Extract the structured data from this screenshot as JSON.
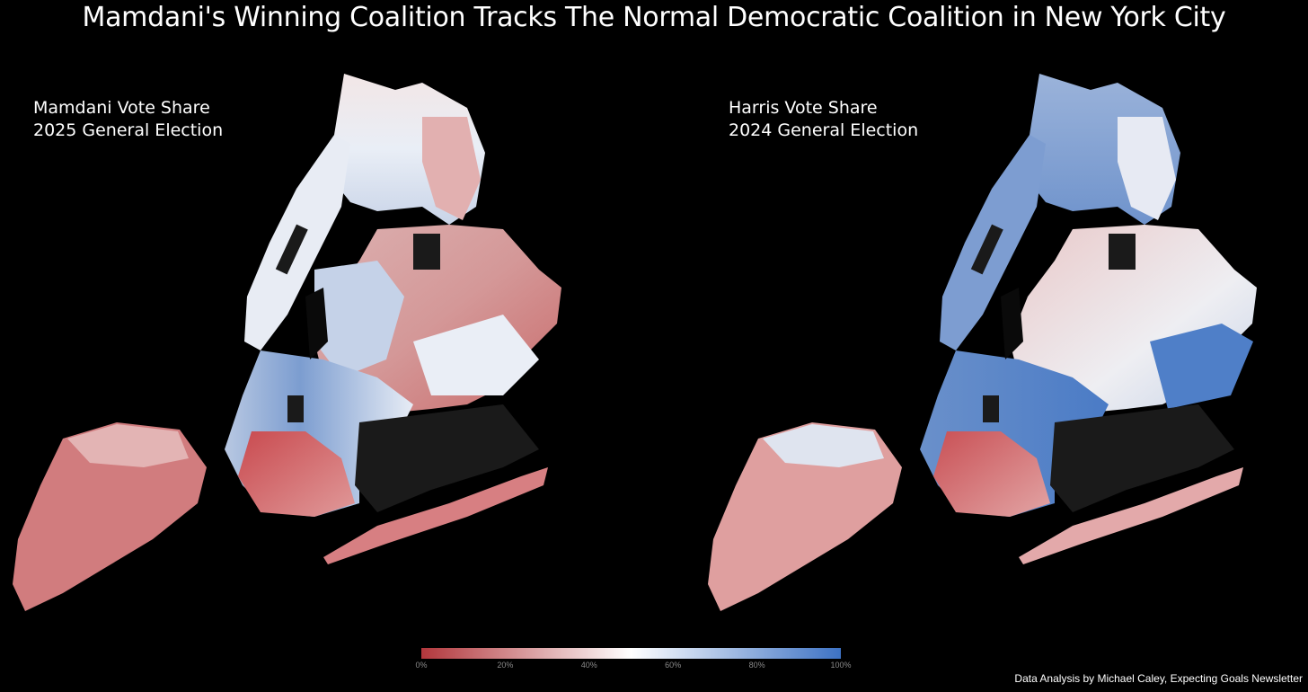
{
  "title": "Mamdani's Winning Coalition Tracks The Normal Democratic Coalition in New York City",
  "panels": [
    {
      "line1": "Mamdani Vote Share",
      "line2": "2025 General Election"
    },
    {
      "line1": "Harris Vote Share",
      "line2": "2024 General Election"
    }
  ],
  "legend": {
    "ticks": [
      "0%",
      "20%",
      "40%",
      "60%",
      "80%",
      "100%"
    ],
    "colors": {
      "low": "#b2373c",
      "mid": "#ffffff",
      "high": "#3d72c4"
    }
  },
  "credit": "Data Analysis by Michael Caley, Expecting Goals Newsletter",
  "palette": {
    "background": "#000000",
    "water_gap": "#1a1a1a",
    "red_strong": "#b2373c",
    "red_light": "#e6a5a5",
    "white": "#f8f4f4",
    "blue_light": "#b9c8e2",
    "blue_strong": "#3d72c4"
  }
}
